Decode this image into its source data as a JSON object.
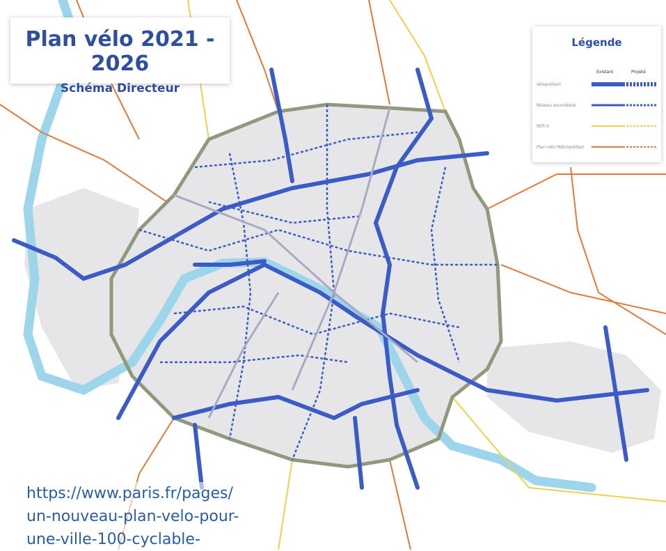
{
  "header": {
    "title": "Plan vélo 2021 - 2026",
    "subtitle": "Schéma Directeur"
  },
  "legend": {
    "title": "Légende",
    "columns": [
      "Existant",
      "Projeté"
    ],
    "items": [
      "Vélopolitain",
      "Réseau secondaire",
      "RER V",
      "Plan vélo Métropolitain"
    ]
  },
  "caption": {
    "lines": [
      "https://www.paris.fr/pages/",
      "un-nouveau-plan-velo-pour-",
      "une-ville-100-cyclable-"
    ]
  }
}
